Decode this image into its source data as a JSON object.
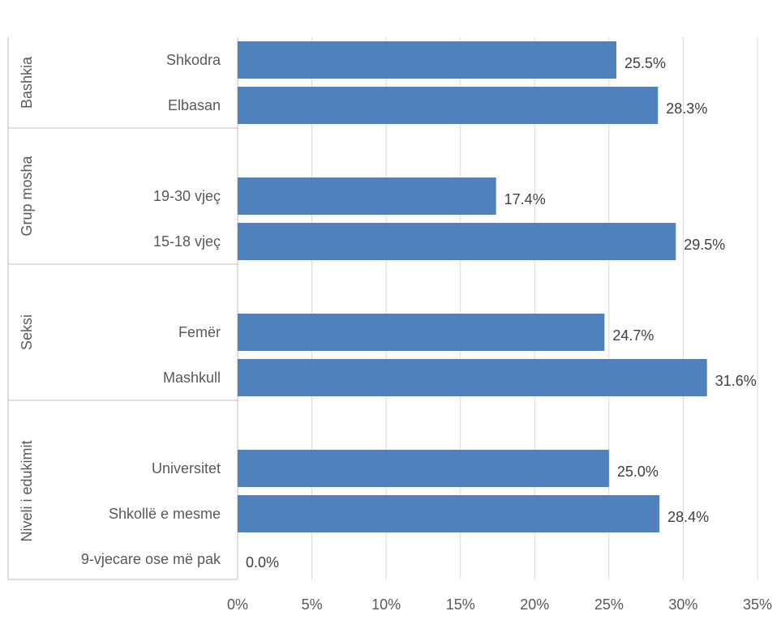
{
  "colors": {
    "bar": "#4f81bd",
    "grid": "#d9d9d9",
    "axis": "#bfbfbf",
    "text": "#595959"
  },
  "chart_data": {
    "type": "bar",
    "orientation": "horizontal",
    "xlim": [
      0,
      35
    ],
    "xticks": [
      0,
      5,
      10,
      15,
      20,
      25,
      30,
      35
    ],
    "xtick_labels": [
      "0%",
      "5%",
      "10%",
      "15%",
      "20%",
      "25%",
      "30%",
      "35%"
    ],
    "grid": true,
    "groups": [
      {
        "name": "Bashkia",
        "categories": [
          {
            "label": "Shkodra",
            "value": 25.5,
            "value_label": "25.5%"
          },
          {
            "label": "Elbasan",
            "value": 28.3,
            "value_label": "28.3%"
          }
        ]
      },
      {
        "name": "Grup mosha",
        "categories": [
          {
            "label": "19-30 vjeç",
            "value": 17.4,
            "value_label": "17.4%"
          },
          {
            "label": "15-18 vjeç",
            "value": 29.5,
            "value_label": "29.5%"
          }
        ]
      },
      {
        "name": "Seksi",
        "categories": [
          {
            "label": "Femër",
            "value": 24.7,
            "value_label": "24.7%"
          },
          {
            "label": "Mashkull",
            "value": 31.6,
            "value_label": "31.6%"
          }
        ]
      },
      {
        "name": "Niveli i edukimit",
        "categories": [
          {
            "label": "Universitet",
            "value": 25.0,
            "value_label": "25.0%"
          },
          {
            "label": "Shkollë e mesme",
            "value": 28.4,
            "value_label": "28.4%"
          },
          {
            "label": "9-vjecare ose më pak",
            "value": 0.0,
            "value_label": "0.0%"
          }
        ]
      }
    ]
  }
}
